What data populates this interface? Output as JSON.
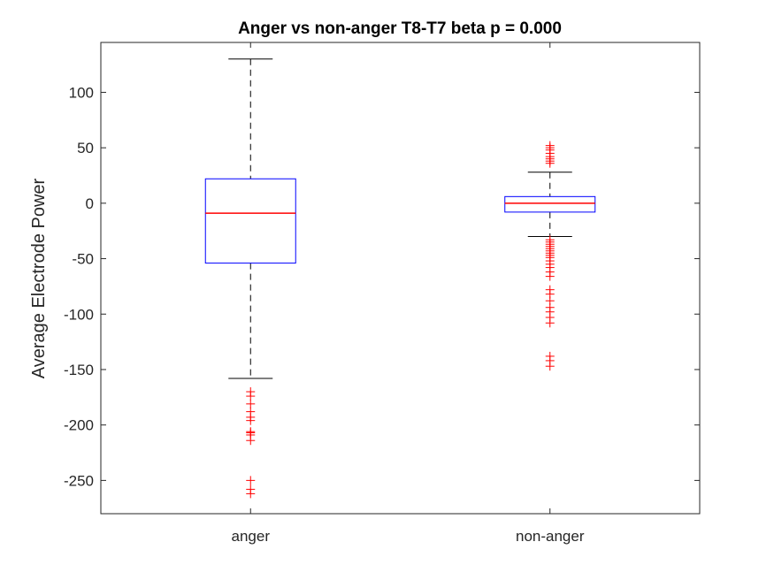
{
  "chart_data": {
    "type": "boxplot",
    "title": "Anger vs non-anger T8-T7 beta p = 0.000",
    "xlabel": "",
    "ylabel": "Average Electrode Power",
    "ylim": [
      -280,
      145
    ],
    "yticks": [
      100,
      50,
      0,
      -50,
      -100,
      -150,
      -200,
      -250
    ],
    "grid": false,
    "categories": [
      "anger",
      "non-anger"
    ],
    "boxes": [
      {
        "label": "anger",
        "whisker_high": 130,
        "q3": 22,
        "median": -9,
        "q1": -54,
        "whisker_low": -158,
        "outliers": [
          -170,
          -174,
          -181,
          -188,
          -193,
          -196,
          -206,
          -207,
          -209,
          -214,
          -250,
          -258,
          -262
        ]
      },
      {
        "label": "non-anger",
        "whisker_high": 28,
        "q3": 6,
        "median": 0,
        "q1": -8,
        "whisker_low": -30,
        "outliers": [
          52,
          50,
          48,
          45,
          42,
          40,
          38,
          36,
          -33,
          -35,
          -37,
          -39,
          -41,
          -43,
          -45,
          -47,
          -49,
          -52,
          -55,
          -58,
          -62,
          -66,
          -78,
          -82,
          -88,
          -94,
          -98,
          -103,
          -108,
          -138,
          -142,
          -147
        ]
      }
    ],
    "colors": {
      "box": "#0000ff",
      "median": "#ff0000",
      "whisker": "#000000",
      "outlier": "#ff0000",
      "axis": "#262626"
    }
  }
}
